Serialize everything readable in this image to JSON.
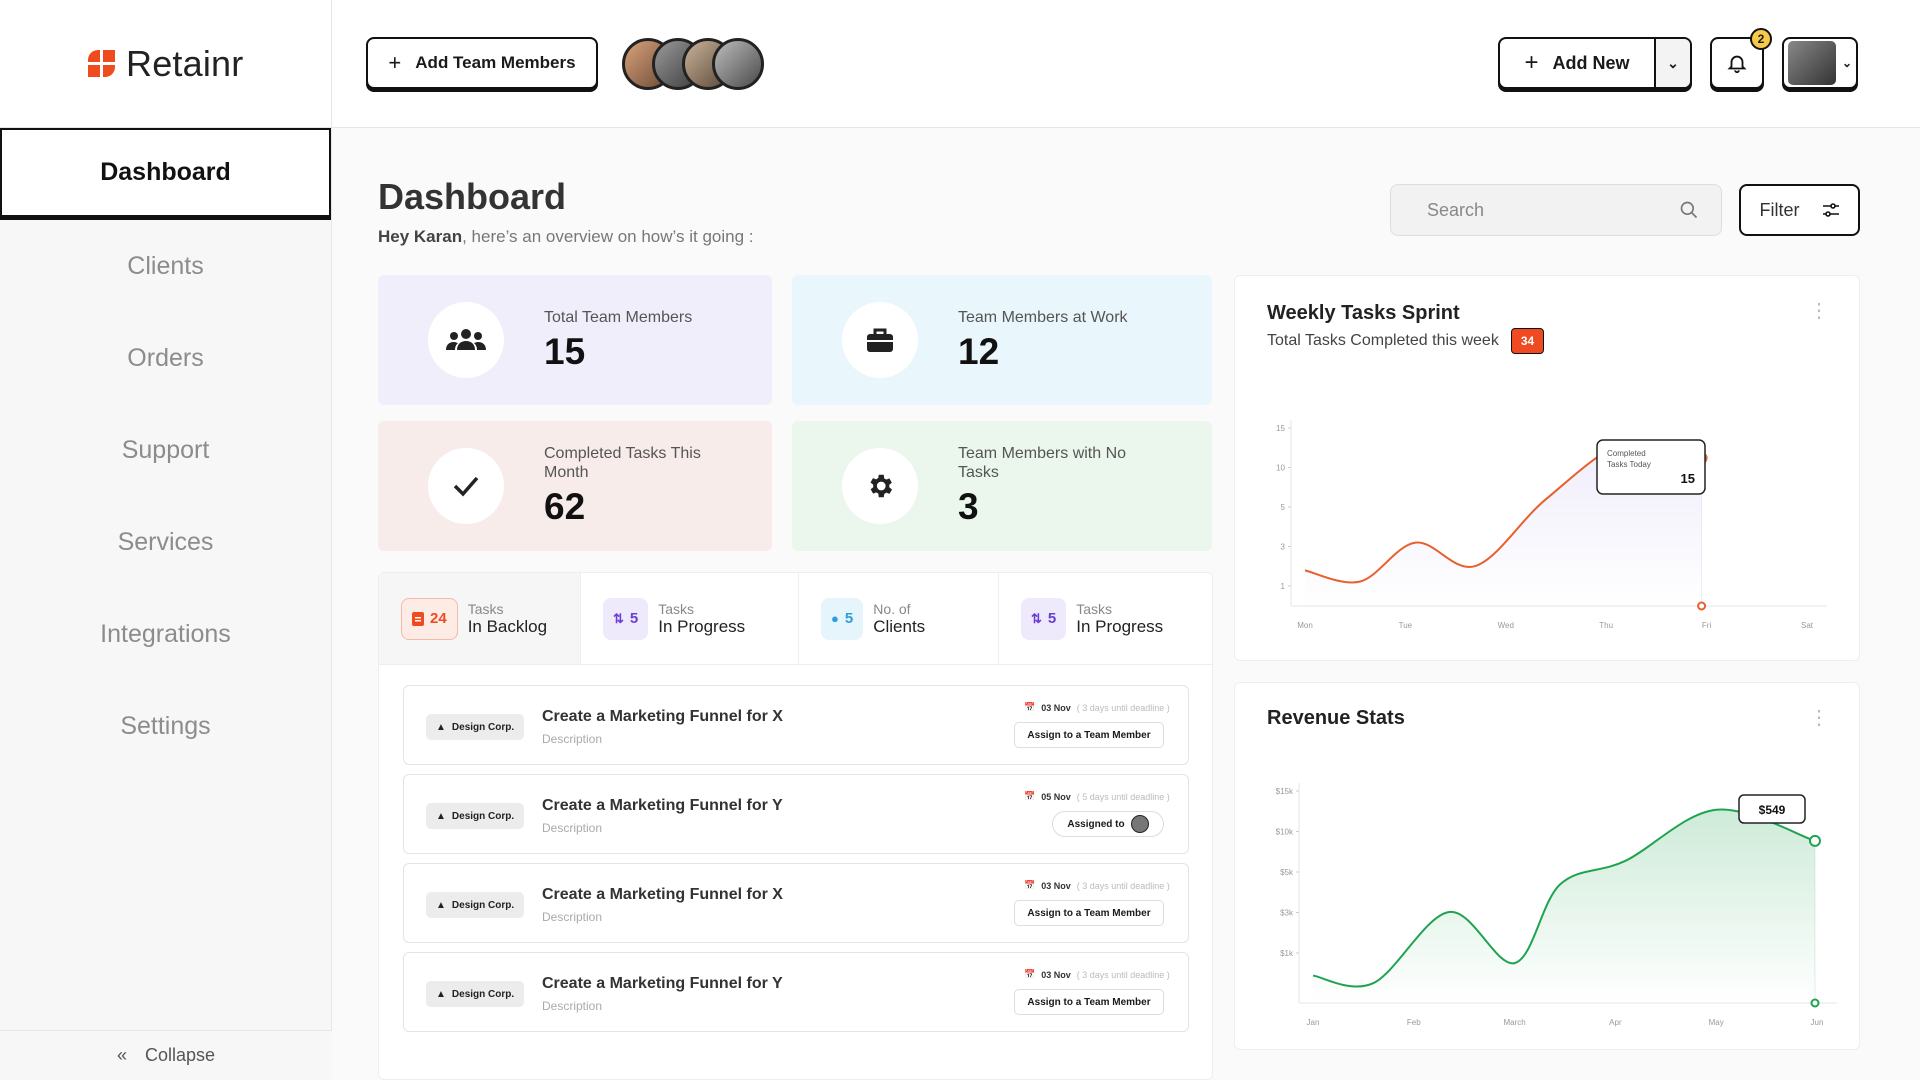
{
  "app": {
    "name": "Retainr"
  },
  "sidebar": {
    "items": [
      {
        "label": "Dashboard"
      },
      {
        "label": "Clients"
      },
      {
        "label": "Orders"
      },
      {
        "label": "Support"
      },
      {
        "label": "Services"
      },
      {
        "label": "Integrations"
      },
      {
        "label": "Settings"
      }
    ],
    "collapse_label": "Collapse"
  },
  "topbar": {
    "add_team_label": "Add Team Members",
    "add_new_label": "Add New",
    "notification_count": "2"
  },
  "page": {
    "title": "Dashboard",
    "greeting_name": "Hey Karan",
    "greeting_rest": ", here’s an overview on how’s it going :",
    "search_placeholder": "Search",
    "filter_label": "Filter"
  },
  "stats": [
    {
      "label": "Total Team Members",
      "value": "15",
      "icon": "team-icon",
      "color": "#f0eefb"
    },
    {
      "label": "Team Members at Work",
      "value": "12",
      "icon": "briefcase-icon",
      "color": "#e9f6fc"
    },
    {
      "label": "Completed Tasks This Month",
      "value": "62",
      "icon": "check-icon",
      "color": "#f8eceb"
    },
    {
      "label": "Team Members with No Tasks",
      "value": "3",
      "icon": "gear-icon",
      "color": "#ebf7ec"
    }
  ],
  "tabs": [
    {
      "count": "24",
      "small": "Tasks",
      "big": "In Backlog",
      "color": "#ef4a21",
      "bg": "#fdebe5"
    },
    {
      "count": "5",
      "small": "Tasks",
      "big": "In Progress",
      "color": "#6a3fd3",
      "bg": "#efeafb"
    },
    {
      "count": "5",
      "small": "No. of",
      "big": "Clients",
      "color": "#2d9fd8",
      "bg": "#e6f4fb"
    },
    {
      "count": "5",
      "small": "Tasks",
      "big": "In Progress",
      "color": "#6a3fd3",
      "bg": "#efeafb"
    }
  ],
  "tasks": [
    {
      "client": "Design Corp.",
      "title": "Create a Marketing Funnel for X",
      "desc": "Description",
      "date": "03 Nov",
      "deadline": "( 3 days until deadline )",
      "action": "Assign to a Team Member"
    },
    {
      "client": "Design Corp.",
      "title": "Create a Marketing Funnel for Y",
      "desc": "Description",
      "date": "05 Nov",
      "deadline": "( 5 days until deadline )",
      "action": "Assigned to"
    },
    {
      "client": "Design Corp.",
      "title": "Create a Marketing Funnel for X",
      "desc": "Description",
      "date": "03 Nov",
      "deadline": "( 3 days until deadline )",
      "action": "Assign to a Team Member"
    },
    {
      "client": "Design Corp.",
      "title": "Create a Marketing Funnel for Y",
      "desc": "Description",
      "date": "03 Nov",
      "deadline": "( 3 days until deadline )",
      "action": "Assign to a Team Member"
    }
  ],
  "weekly": {
    "title": "Weekly Tasks Sprint",
    "subtitle": "Total Tasks Completed this week",
    "count": "34",
    "tooltip_line1": "Completed",
    "tooltip_line2": "Tasks Today",
    "tooltip_value": "15"
  },
  "revenue": {
    "title": "Revenue Stats",
    "tooltip_value": "$549"
  },
  "chart_data": [
    {
      "type": "line",
      "title": "Weekly Tasks Sprint",
      "x": [
        "Mon",
        "Tue",
        "Wed",
        "Thu",
        "Fri",
        "Sat"
      ],
      "y_ticks": [
        "15",
        "10",
        "5",
        "3",
        "1"
      ],
      "points": [
        [
          0,
          3.2
        ],
        [
          0.55,
          2.2
        ],
        [
          1.1,
          5.7
        ],
        [
          1.7,
          3.6
        ],
        [
          2.4,
          9.6
        ],
        [
          3.2,
          14.7
        ],
        [
          3.95,
          13.3
        ]
      ],
      "ylim": [
        0,
        16
      ],
      "color": "#e8602c"
    },
    {
      "type": "area",
      "title": "Revenue Stats",
      "x": [
        "Jan",
        "Feb",
        "March",
        "Apr",
        "May",
        "Jun"
      ],
      "y_ticks": [
        "$15k",
        "$10k",
        "$5k",
        "$3k",
        "$1k"
      ],
      "points": [
        [
          0,
          2.2
        ],
        [
          0.6,
          1.6
        ],
        [
          1.35,
          7.3
        ],
        [
          2,
          3.2
        ],
        [
          2.45,
          9.5
        ],
        [
          3.1,
          11.4
        ],
        [
          4,
          15.5
        ],
        [
          4.98,
          13.0
        ]
      ],
      "ylim": [
        0,
        17
      ],
      "color": "#1fa34f"
    }
  ]
}
